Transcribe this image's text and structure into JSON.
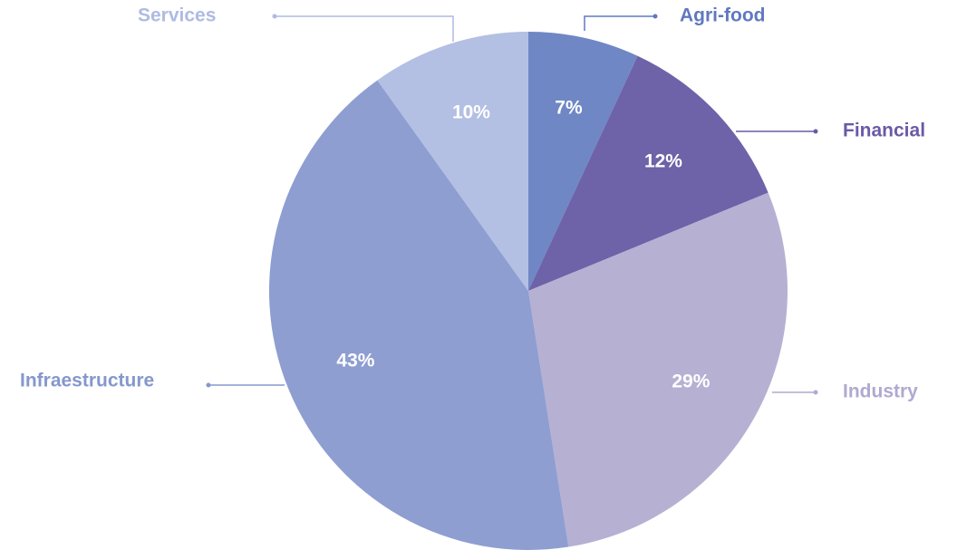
{
  "chart_data": {
    "type": "pie",
    "categories": [
      "Agri-food",
      "Financial",
      "Industry",
      "Infraestructure",
      "Services"
    ],
    "values": [
      7,
      12,
      29,
      43,
      10
    ],
    "value_labels": [
      "7%",
      "12%",
      "29%",
      "43%",
      "10%"
    ],
    "colors": [
      "#6f87c5",
      "#6e62a8",
      "#b6b0d3",
      "#8e9ed1",
      "#b3bfe3"
    ],
    "label_colors": [
      "#6078c0",
      "#6a5aa6",
      "#b0a9d0",
      "#8597cd",
      "#aebbe2"
    ]
  }
}
